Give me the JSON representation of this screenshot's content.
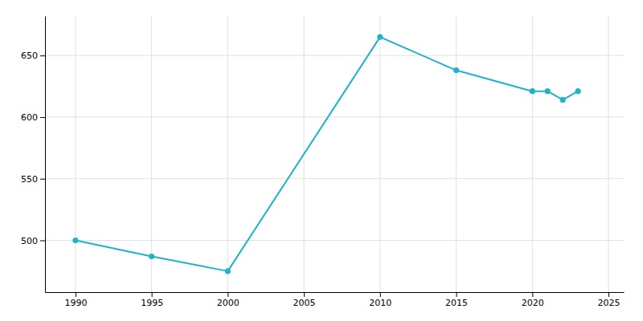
{
  "chart_data": {
    "type": "line",
    "x": [
      1990,
      1995,
      2000,
      2010,
      2015,
      2020,
      2021,
      2022,
      2023
    ],
    "values": [
      500,
      487,
      475,
      665,
      638,
      621,
      621,
      614,
      621
    ],
    "color": "#20b2c8",
    "marker": "o",
    "xlim": [
      1988,
      2026
    ],
    "ylim": [
      458,
      682
    ],
    "xticks": [
      1990,
      1995,
      2000,
      2005,
      2010,
      2015,
      2020,
      2025
    ],
    "yticks": [
      500,
      550,
      600,
      650
    ],
    "grid": true
  }
}
